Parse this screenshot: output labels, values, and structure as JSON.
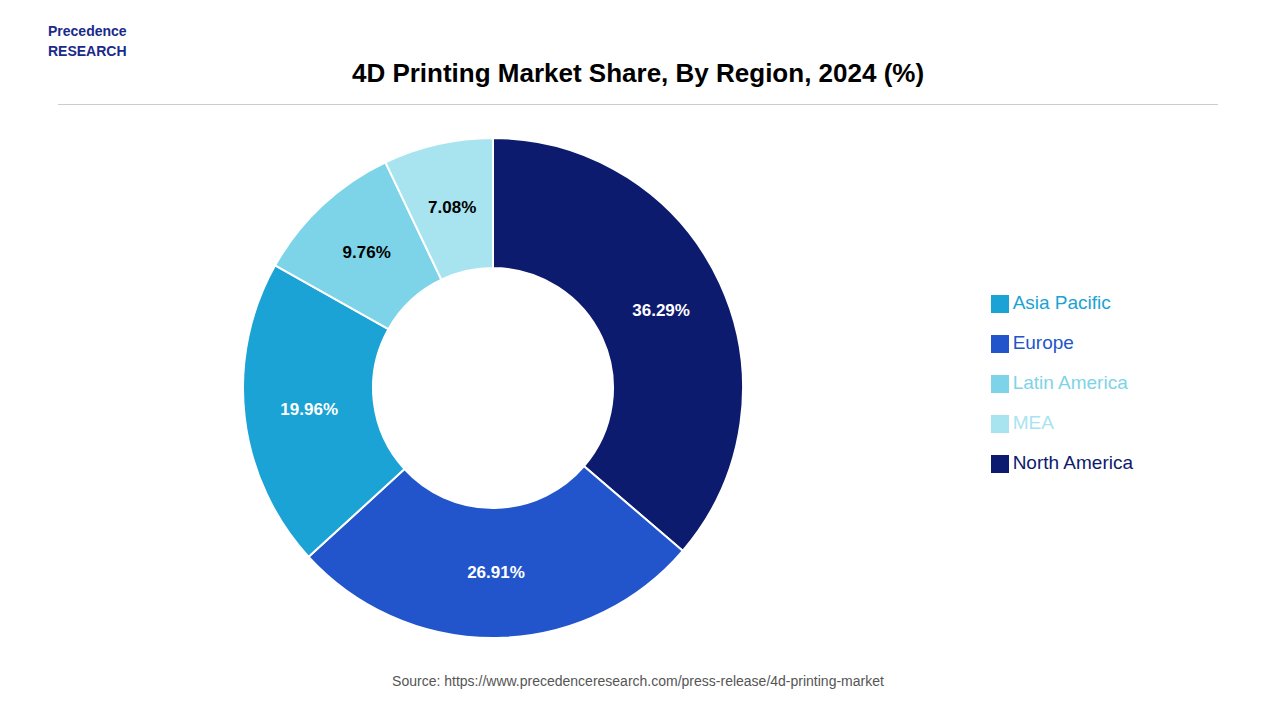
{
  "chart_data": {
    "type": "pie",
    "title": "4D Printing Market Share, By Region, 2024 (%)",
    "categories": [
      "North America",
      "Europe",
      "Asia Pacific",
      "Latin America",
      "MEA"
    ],
    "values": [
      36.29,
      26.91,
      19.96,
      9.76,
      7.08
    ],
    "value_labels": [
      "36.29%",
      "26.91%",
      "19.96%",
      "9.76%",
      "7.08%"
    ],
    "colors": [
      "#0d1b6e",
      "#2255cc",
      "#1aa3d4",
      "#7dd4e8",
      "#a8e4f0"
    ],
    "data_labels": true,
    "legend": "right",
    "annotations": [
      "Precedence\nRESEARCH",
      "Source: https://www.precedenceresearch.com/press-release/4d-printing-market"
    ]
  }
}
